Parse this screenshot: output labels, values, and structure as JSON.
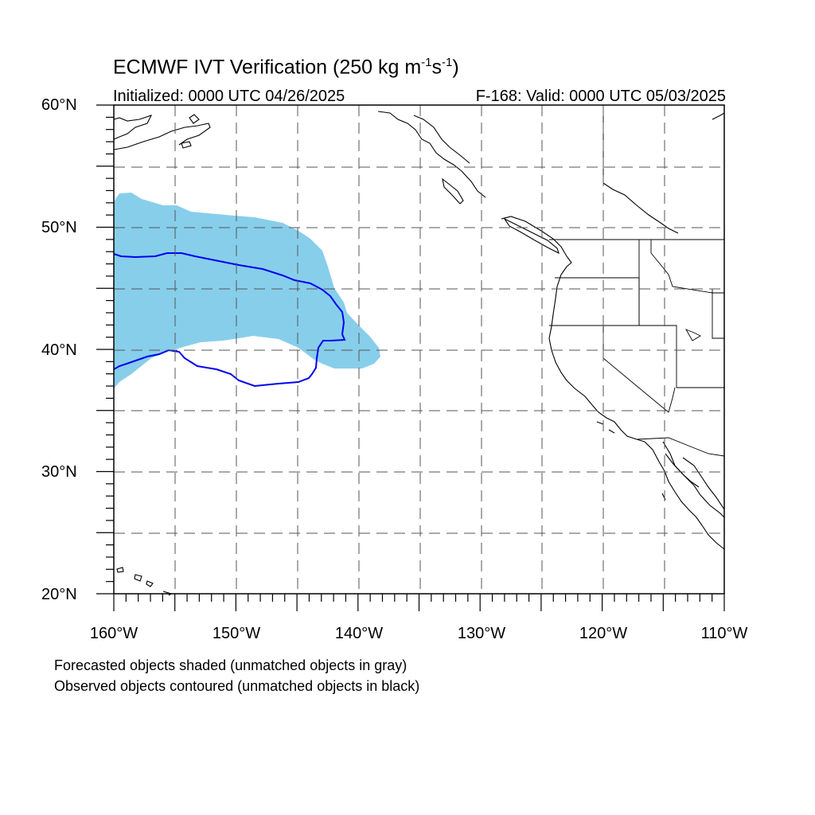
{
  "title": {
    "main_prefix": "ECMWF IVT Verification (250 kg m",
    "sup1": "-1",
    "mid": "s",
    "sup2": "-1",
    "main_suffix": ")"
  },
  "initialized": "Initialized: 0000 UTC 04/26/2025",
  "valid": "F-168: Valid: 0000 UTC 05/03/2025",
  "lat_labels": [
    "60°N",
    "50°N",
    "40°N",
    "30°N",
    "20°N"
  ],
  "lon_labels": [
    "160°W",
    "150°W",
    "140°W",
    "130°W",
    "120°W",
    "110°W"
  ],
  "notes": [
    "Forecasted objects shaded (unmatched objects in gray)",
    "Observed objects contoured (unmatched objects in black)"
  ],
  "colors": {
    "forecast_fill": "#87CEEB",
    "observed_contour": "#0000EE",
    "coast": "#000000",
    "grid": "#555555"
  },
  "map_extent": {
    "lon_min": -160,
    "lon_max": -110,
    "lat_min": 20,
    "lat_max": 60
  }
}
